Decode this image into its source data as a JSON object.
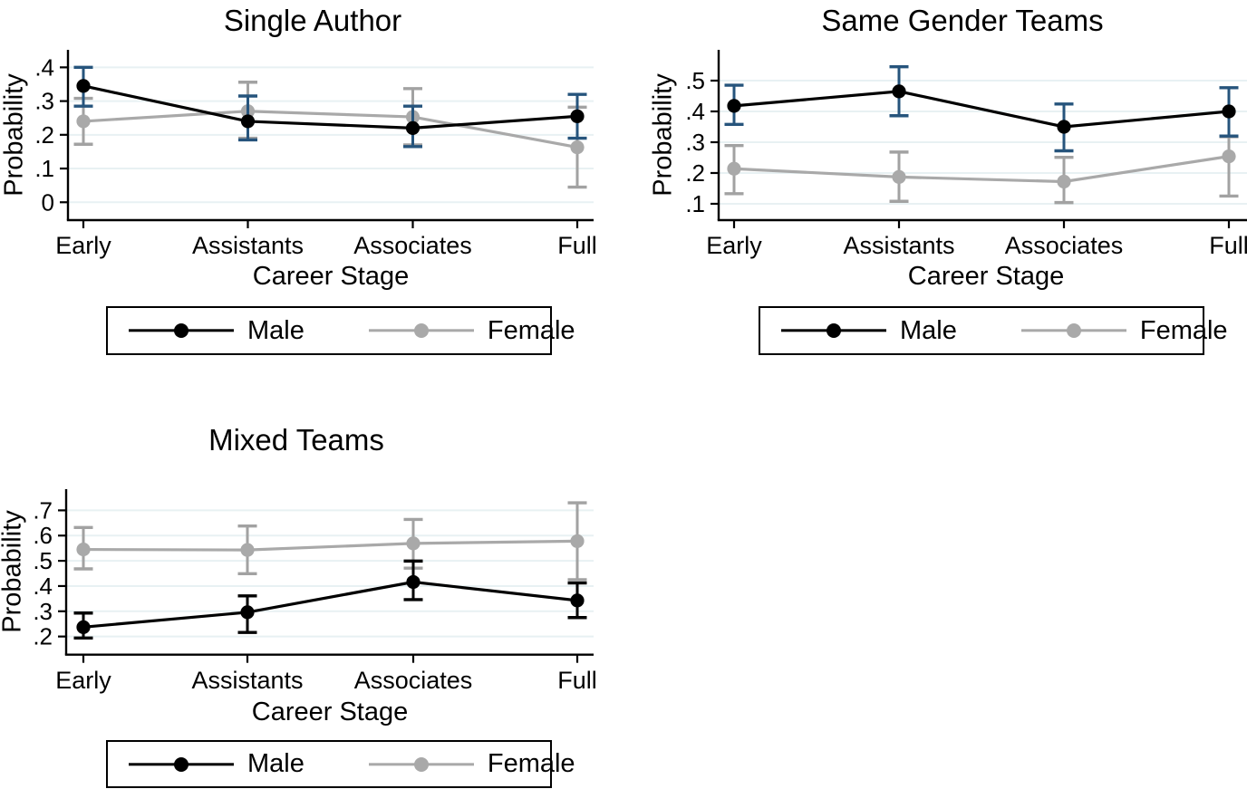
{
  "page": {
    "background": "#ffffff"
  },
  "colors": {
    "male_line": "#000000",
    "male_marker": "#000000",
    "male_ci_navy": "#26547c",
    "male_ci_black": "#000000",
    "female_line": "#a9a9a9",
    "female_ci": "#a2a2a2",
    "gridline": "#e8f1f3",
    "axis": "#000000",
    "text": "#000000"
  },
  "chart_data": [
    {
      "id": "single-author",
      "type": "line",
      "title": "Single Author",
      "xlabel": "Career Stage",
      "ylabel": "Probability",
      "categories": [
        "Early",
        "Assistants",
        "Associates",
        "Full"
      ],
      "ytick_labels": [
        "0",
        ".1",
        ".2",
        ".3",
        ".4"
      ],
      "yticks": [
        0,
        0.1,
        0.2,
        0.3,
        0.4
      ],
      "ylim": [
        -0.053,
        0.452
      ],
      "grid": true,
      "legend_position": "bottom",
      "series": [
        {
          "name": "Female",
          "color": "#a9a9a9",
          "ci_color": "#a2a2a2",
          "values": [
            0.24,
            0.27,
            0.253,
            0.163
          ],
          "ci_low": [
            0.172,
            0.19,
            0.17,
            0.045
          ],
          "ci_high": [
            0.308,
            0.356,
            0.337,
            0.282
          ]
        },
        {
          "name": "Male",
          "color": "#000000",
          "ci_color": "#26547c",
          "values": [
            0.345,
            0.24,
            0.22,
            0.255
          ],
          "ci_low": [
            0.285,
            0.185,
            0.165,
            0.19
          ],
          "ci_high": [
            0.4,
            0.315,
            0.285,
            0.32
          ]
        }
      ]
    },
    {
      "id": "same-gender-teams",
      "type": "line",
      "title": "Same Gender Teams",
      "xlabel": "Career Stage",
      "ylabel": "Probability",
      "categories": [
        "Early",
        "Assistants",
        "Associates",
        "Full"
      ],
      "ytick_labels": [
        ".1",
        ".2",
        ".3",
        ".4",
        ".5"
      ],
      "yticks": [
        0.1,
        0.2,
        0.3,
        0.4,
        0.5
      ],
      "ylim": [
        0.047,
        0.6
      ],
      "grid": true,
      "legend_position": "bottom",
      "series": [
        {
          "name": "Female",
          "color": "#a9a9a9",
          "ci_color": "#a2a2a2",
          "values": [
            0.214,
            0.187,
            0.172,
            0.254
          ],
          "ci_low": [
            0.133,
            0.108,
            0.104,
            0.125
          ],
          "ci_high": [
            0.289,
            0.268,
            0.251,
            0.318
          ]
        },
        {
          "name": "Male",
          "color": "#000000",
          "ci_color": "#26547c",
          "values": [
            0.418,
            0.465,
            0.35,
            0.4
          ],
          "ci_low": [
            0.358,
            0.386,
            0.272,
            0.32
          ],
          "ci_high": [
            0.485,
            0.545,
            0.424,
            0.477
          ]
        }
      ]
    },
    {
      "id": "mixed-teams",
      "type": "line",
      "title": "Mixed Teams",
      "xlabel": "Career Stage",
      "ylabel": "Probability",
      "categories": [
        "Early",
        "Assistants",
        "Associates",
        "Full"
      ],
      "ytick_labels": [
        ".2",
        ".3",
        ".4",
        ".5",
        ".6",
        ".7"
      ],
      "yticks": [
        0.2,
        0.3,
        0.4,
        0.5,
        0.6,
        0.7
      ],
      "ylim": [
        0.128,
        0.784
      ],
      "grid": true,
      "legend_position": "bottom",
      "series": [
        {
          "name": "Female",
          "color": "#a9a9a9",
          "ci_color": "#a2a2a2",
          "values": [
            0.545,
            0.543,
            0.569,
            0.578
          ],
          "ci_low": [
            0.468,
            0.449,
            0.471,
            0.425
          ],
          "ci_high": [
            0.632,
            0.638,
            0.664,
            0.73
          ]
        },
        {
          "name": "Male",
          "color": "#000000",
          "ci_color": "#000000",
          "values": [
            0.237,
            0.296,
            0.416,
            0.343
          ],
          "ci_low": [
            0.194,
            0.216,
            0.346,
            0.275
          ],
          "ci_high": [
            0.293,
            0.361,
            0.499,
            0.412
          ]
        }
      ]
    }
  ]
}
